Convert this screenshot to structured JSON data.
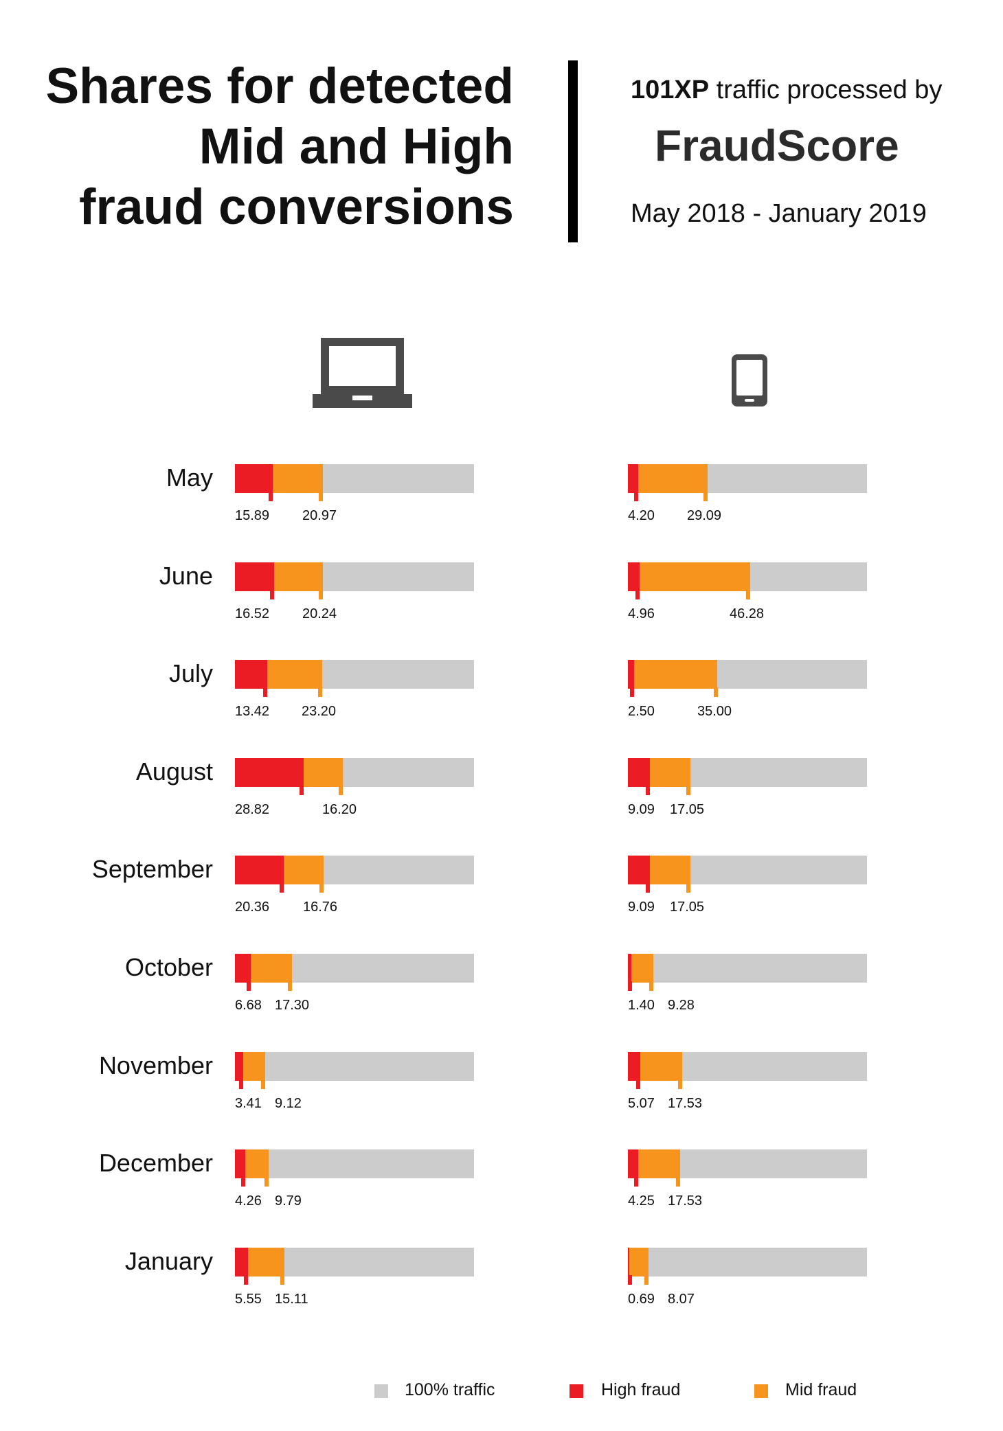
{
  "header": {
    "title_lines": [
      "Shares for detected",
      "Mid and High",
      "fraud conversions"
    ],
    "source_bold": "101XP",
    "source_rest": " traffic processed by",
    "brand_name": "FraudScore",
    "date_range": "May 2018 - January 2019"
  },
  "icons": {
    "left": "laptop-icon",
    "right": "smartphone-icon"
  },
  "colors": {
    "high": "#ec1c24",
    "mid": "#f7941d",
    "traffic": "#cccccc",
    "text": "#111111"
  },
  "legend": {
    "traffic_label": "100% traffic",
    "high_label": "High fraud",
    "mid_label": "Mid fraud"
  },
  "chart_data": {
    "type": "bar",
    "title": "Shares for detected Mid and High fraud conversions",
    "orientation": "horizontal-stacked",
    "unit": "% of traffic",
    "scale_max": 100,
    "categories": [
      "May",
      "June",
      "July",
      "August",
      "September",
      "October",
      "November",
      "December",
      "January"
    ],
    "groups": [
      {
        "name": "Desktop",
        "icon": "laptop-icon",
        "series": [
          {
            "name": "High fraud",
            "values": [
              15.89,
              16.52,
              13.42,
              28.82,
              20.36,
              6.68,
              3.41,
              4.26,
              5.55
            ],
            "labels": [
              "15.89",
              "16.52",
              "13.42",
              "28.82",
              "20.36",
              "6.68",
              "3.41",
              "4.26",
              "5.55"
            ]
          },
          {
            "name": "Mid fraud",
            "values": [
              20.97,
              20.24,
              23.2,
              16.2,
              16.76,
              17.3,
              9.12,
              9.79,
              15.11
            ],
            "labels": [
              "20.97",
              "20.24",
              "23.20",
              "16.20",
              "16.76",
              "17.30",
              "9.12",
              "9.79",
              "15.11"
            ]
          }
        ]
      },
      {
        "name": "Mobile",
        "icon": "smartphone-icon",
        "series": [
          {
            "name": "High fraud",
            "values": [
              4.2,
              4.96,
              2.5,
              9.09,
              9.09,
              1.4,
              5.07,
              4.25,
              0.69
            ],
            "labels": [
              "4.20",
              "4.96",
              "2.50",
              "9.09",
              "9.09",
              "1.40",
              "5.07",
              "4.25",
              "0.69"
            ]
          },
          {
            "name": "Mid fraud",
            "values": [
              29.09,
              46.28,
              35.0,
              17.05,
              17.05,
              9.28,
              17.53,
              17.53,
              8.07
            ],
            "labels": [
              "29.09",
              "46.28",
              "35.00",
              "17.05",
              "17.05",
              "9.28",
              "17.53",
              "17.53",
              "8.07"
            ]
          }
        ]
      }
    ]
  }
}
